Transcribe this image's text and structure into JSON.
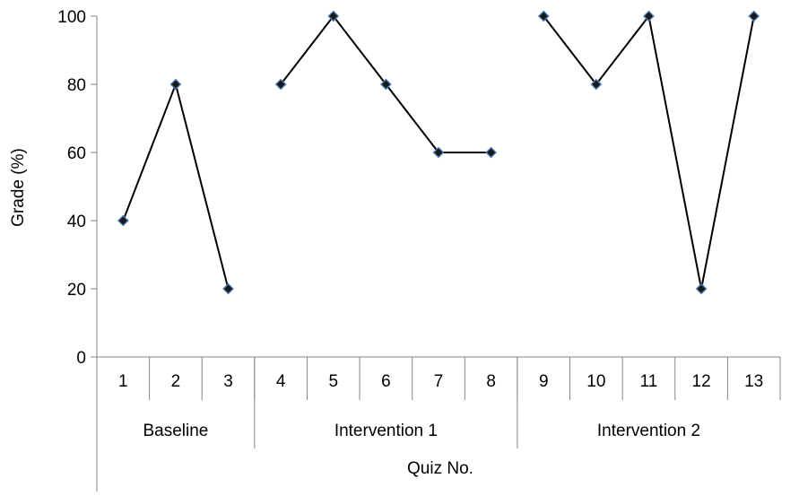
{
  "chart_data": {
    "type": "line",
    "title": "",
    "xlabel": "Quiz No.",
    "ylabel": "Grade (%)",
    "ylim": [
      0,
      100
    ],
    "yticks": [
      0,
      20,
      40,
      60,
      80,
      100
    ],
    "grid": false,
    "categories": [
      "1",
      "2",
      "3",
      "4",
      "5",
      "6",
      "7",
      "8",
      "9",
      "10",
      "11",
      "12",
      "13"
    ],
    "phases": [
      {
        "label": "Baseline",
        "quizzes": [
          "1",
          "2",
          "3"
        ]
      },
      {
        "label": "Intervention 1",
        "quizzes": [
          "4",
          "5",
          "6",
          "7",
          "8"
        ]
      },
      {
        "label": "Intervention 2",
        "quizzes": [
          "9",
          "10",
          "11",
          "12",
          "13"
        ]
      }
    ],
    "series": [
      {
        "segments": [
          {
            "x": [
              "1",
              "2",
              "3"
            ],
            "y": [
              40,
              80,
              20
            ]
          },
          {
            "x": [
              "4",
              "5",
              "6",
              "7",
              "8"
            ],
            "y": [
              80,
              100,
              80,
              60,
              60
            ]
          },
          {
            "x": [
              "9",
              "10",
              "11",
              "12",
              "13"
            ],
            "y": [
              100,
              80,
              100,
              20,
              100
            ]
          }
        ]
      }
    ],
    "colors": {
      "line": "#000000",
      "marker_fill": "#1a1a1a",
      "marker_stroke": "#4f81bd",
      "axis": "#868686"
    }
  }
}
